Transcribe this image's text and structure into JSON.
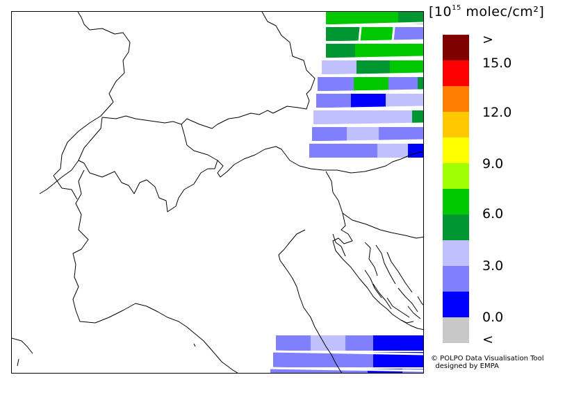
{
  "legend": {
    "unit_prefix": "[10",
    "unit_exp": "15",
    "unit_suffix": " molec/cm²]",
    "colors": [
      "#800000",
      "#ff0000",
      "#ff8000",
      "#ffc800",
      "#ffff00",
      "#a0ff00",
      "#00c800",
      "#009632",
      "#c0c0ff",
      "#8080ff",
      "#0000ff",
      "#c8c8c8"
    ],
    "ticks": [
      ">",
      "15.0",
      "12.0",
      "9.0",
      "6.0",
      "3.0",
      "0.0",
      "<"
    ]
  },
  "credits": {
    "line1": "© POLPO Data Visualisation Tool",
    "line2": "  designed by EMPA"
  }
}
